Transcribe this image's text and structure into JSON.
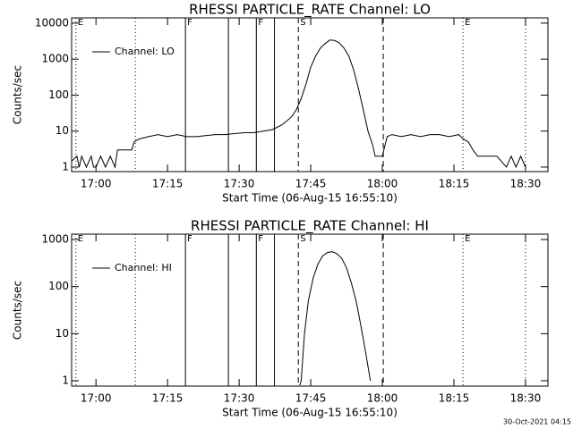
{
  "chart_data": [
    {
      "type": "line",
      "title": "RHESSI PARTICLE_RATE Channel: LO",
      "xlabel": "Start Time (06-Aug-15 16:55:10)",
      "ylabel": "Counts/sec",
      "log_y": true,
      "xlim": [
        1014.9,
        1114.7
      ],
      "ylim": [
        0.75,
        14000
      ],
      "xticks": [
        {
          "value": 1020,
          "label": "17:00"
        },
        {
          "value": 1035,
          "label": "17:15"
        },
        {
          "value": 1050,
          "label": "17:30"
        },
        {
          "value": 1065,
          "label": "17:45"
        },
        {
          "value": 1080,
          "label": "18:00"
        },
        {
          "value": 1095,
          "label": "18:15"
        },
        {
          "value": 1110,
          "label": "18:30"
        }
      ],
      "yticks": [
        1,
        10,
        100,
        1000,
        10000
      ],
      "markers": [
        {
          "x": 1015.8,
          "style": "dotted",
          "label": "E"
        },
        {
          "x": 1028.25,
          "style": "dotted"
        },
        {
          "x": 1038.75,
          "style": "solid",
          "label": "F"
        },
        {
          "x": 1047.75,
          "style": "solid"
        },
        {
          "x": 1053.6,
          "style": "solid",
          "label": "F"
        },
        {
          "x": 1057.4,
          "style": "solid"
        },
        {
          "x": 1062.4,
          "style": "dashed",
          "label": "S"
        },
        {
          "x": 1080.2,
          "style": "dashed"
        },
        {
          "x": 1096.9,
          "style": "dotted",
          "label": "E"
        },
        {
          "x": 1110,
          "style": "dotted"
        }
      ],
      "series": [
        {
          "name": "Channel: LO",
          "color": "#000000",
          "x": [
            1015,
            1016,
            1016.5,
            1017,
            1018,
            1019,
            1019.5,
            1020,
            1021,
            1022,
            1023,
            1024,
            1024.5,
            1026,
            1027.5,
            1028,
            1029,
            1031,
            1033,
            1035,
            1037,
            1039,
            1041,
            1043,
            1045,
            1047,
            1049,
            1051,
            1053,
            1055,
            1057,
            1059,
            1061,
            1062,
            1063,
            1064,
            1065,
            1066,
            1067,
            1068,
            1069,
            1070,
            1071,
            1072,
            1073,
            1074,
            1075,
            1076,
            1077,
            1078,
            1078.5,
            1080,
            1081,
            1082,
            1084,
            1086,
            1088,
            1090,
            1092,
            1094,
            1096,
            1097,
            1098,
            1099,
            1100,
            1102,
            1104,
            1106,
            1107,
            1108,
            1109,
            1110
          ],
          "values": [
            1.5,
            2,
            1,
            2,
            1,
            2,
            1,
            1,
            2,
            1,
            2,
            1,
            3,
            3,
            3,
            5,
            6,
            7,
            8,
            7,
            8,
            7,
            7,
            7.5,
            8,
            8,
            8.5,
            9,
            9,
            10,
            11,
            15,
            25,
            40,
            80,
            200,
            600,
            1200,
            2000,
            2700,
            3400,
            3300,
            2800,
            2000,
            1200,
            500,
            150,
            40,
            10,
            4,
            2,
            2,
            7,
            8,
            7,
            8,
            7,
            8,
            8,
            7,
            8,
            6,
            5,
            3,
            2,
            2,
            2,
            1,
            2,
            1,
            2,
            1
          ]
        }
      ]
    },
    {
      "type": "line",
      "title": "RHESSI PARTICLE_RATE Channel: HI",
      "xlabel": "Start Time (06-Aug-15 16:55:10)",
      "ylabel": "Counts/sec",
      "log_y": true,
      "xlim": [
        1014.9,
        1114.7
      ],
      "ylim": [
        0.77,
        1300
      ],
      "xticks": [
        {
          "value": 1020,
          "label": "17:00"
        },
        {
          "value": 1035,
          "label": "17:15"
        },
        {
          "value": 1050,
          "label": "17:30"
        },
        {
          "value": 1065,
          "label": "17:45"
        },
        {
          "value": 1080,
          "label": "18:00"
        },
        {
          "value": 1095,
          "label": "18:15"
        },
        {
          "value": 1110,
          "label": "18:30"
        }
      ],
      "yticks": [
        1,
        10,
        100,
        1000
      ],
      "markers": [
        {
          "x": 1015.8,
          "style": "dotted",
          "label": "E"
        },
        {
          "x": 1028.25,
          "style": "dotted"
        },
        {
          "x": 1038.75,
          "style": "solid",
          "label": "F"
        },
        {
          "x": 1047.75,
          "style": "solid"
        },
        {
          "x": 1053.6,
          "style": "solid",
          "label": "F"
        },
        {
          "x": 1057.4,
          "style": "solid"
        },
        {
          "x": 1062.4,
          "style": "dashed",
          "label": "S"
        },
        {
          "x": 1080.2,
          "style": "dashed"
        },
        {
          "x": 1096.9,
          "style": "dotted",
          "label": "E"
        },
        {
          "x": 1110,
          "style": "dotted"
        }
      ],
      "series": [
        {
          "name": "Channel: HI",
          "color": "#000000",
          "x": [
            1062.7,
            1063,
            1063.7,
            1064.5,
            1065.5,
            1066.5,
            1067.5,
            1068.5,
            1069.5,
            1070.5,
            1071.5,
            1072.5,
            1073.5,
            1074.5,
            1075.5,
            1076.5,
            1077.5
          ],
          "values": [
            0.8,
            1,
            10,
            50,
            150,
            300,
            450,
            530,
            550,
            500,
            400,
            250,
            120,
            50,
            15,
            4,
            1
          ]
        }
      ]
    }
  ],
  "footer": "30-Oct-2021 04:15"
}
